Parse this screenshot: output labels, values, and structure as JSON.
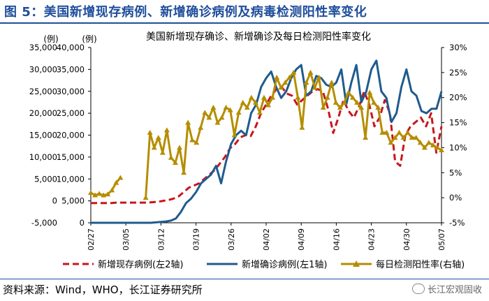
{
  "figure": {
    "title": "图 5：美国新增现存病例、新增确诊病例及病毒检测阳性率变化",
    "source": "资料来源：Wind，WHO，长江证券研究所",
    "watermark": "长江宏观固收",
    "watermark_icon": "wechat-icon"
  },
  "colors": {
    "title": "#1f4e9c",
    "existing": "#c8161d",
    "confirmed": "#1f5b8e",
    "positive": "#b58d00"
  },
  "chart_data": {
    "type": "line",
    "title": "美国新增现存确诊、新增确诊及每日检测阳性率变化",
    "axes": {
      "left2": {
        "unit_label": "(例)",
        "range": [
          -5000,
          35000
        ],
        "ticks": [
          "-5,000",
          "0",
          "5,000",
          "10,000",
          "15,000",
          "20,000",
          "25,000",
          "30,000",
          "35,000"
        ]
      },
      "left1": {
        "unit_label": "(例)",
        "range": [
          0,
          40000
        ],
        "ticks": [
          "0",
          "5,000",
          "10,000",
          "15,000",
          "20,000",
          "25,000",
          "30,000",
          "35,000",
          "40,000"
        ]
      },
      "right": {
        "range": [
          -5,
          30
        ],
        "ticks": [
          "-5%",
          "0%",
          "5%",
          "10%",
          "15%",
          "20%",
          "25%",
          "30%"
        ]
      }
    },
    "x_start": "02/27",
    "x_tick_labels": [
      "02/27",
      "03/05",
      "03/12",
      "03/19",
      "03/26",
      "04/02",
      "04/09",
      "04/16",
      "04/23",
      "04/30",
      "05/07"
    ],
    "series": [
      {
        "name": "新增现存病例(左2轴)",
        "axis": "left2",
        "style": "dashed",
        "color": "#c8161d",
        "start_day": 0,
        "values": [
          -500,
          -500,
          -500,
          -500,
          -500,
          -400,
          -400,
          -400,
          -400,
          -400,
          -400,
          -400,
          -300,
          -200,
          0,
          200,
          500,
          1000,
          2000,
          3000,
          3500,
          4000,
          5000,
          6000,
          7000,
          8500,
          10000,
          12000,
          13000,
          14500,
          15000,
          14800,
          17000,
          20000,
          22000,
          24000,
          25500,
          26000,
          24500,
          24000,
          22000,
          23000,
          24000,
          25000,
          25500,
          25000,
          21000,
          15500,
          19000,
          23000,
          20500,
          19000,
          21500,
          25000,
          22000,
          17000,
          19000,
          23000,
          20000,
          9000,
          8000,
          15000,
          17000,
          18000,
          19000,
          17000,
          20000,
          11000,
          17000
        ]
      },
      {
        "name": "新增确诊病例(左1轴)",
        "axis": "left1",
        "style": "solid",
        "color": "#1f5b8e",
        "start_day": 0,
        "values": [
          0,
          0,
          0,
          0,
          0,
          0,
          0,
          0,
          0,
          0,
          0,
          0,
          0,
          100,
          200,
          300,
          500,
          1000,
          2500,
          4500,
          5500,
          7000,
          9000,
          10000,
          11000,
          13000,
          9000,
          14000,
          18000,
          20000,
          21000,
          20000,
          25000,
          27000,
          31000,
          33000,
          34500,
          31000,
          28500,
          30000,
          33000,
          35000,
          36000,
          29000,
          30000,
          33500,
          33000,
          31500,
          31000,
          32000,
          35000,
          27000,
          32000,
          36000,
          27500,
          30000,
          35000,
          37000,
          30000,
          28500,
          23000,
          25000,
          31000,
          35000,
          30000,
          29000,
          25500,
          25000,
          26000,
          26000,
          30000
        ]
      },
      {
        "name": "每日检测阳性率(右轴)",
        "axis": "right",
        "style": "solid-markers",
        "color": "#b58d00",
        "start_day": 0,
        "values": [
          1,
          0.5,
          0.8,
          0.5,
          0.7,
          1.5,
          3,
          4,
          null,
          null,
          null,
          null,
          null,
          0,
          13,
          10,
          12,
          9,
          13.5,
          8,
          7,
          10,
          5,
          15,
          11.5,
          11,
          14,
          17,
          16,
          18,
          15,
          16,
          18,
          17.5,
          12.5,
          17,
          19,
          18,
          20,
          19,
          17,
          20,
          18.5,
          20,
          24,
          22,
          23,
          24,
          25,
          20,
          14,
          23,
          25,
          22,
          24,
          18,
          20,
          23,
          19,
          18,
          19,
          21,
          20,
          19,
          18,
          12,
          21,
          19,
          18,
          13,
          13,
          11,
          12,
          13,
          12,
          13,
          12,
          12,
          11,
          10,
          11,
          10.5,
          10,
          9.5
        ]
      }
    ]
  },
  "legend": [
    {
      "label": "新增现存病例(左2轴)"
    },
    {
      "label": "新增确诊病例(左1轴)"
    },
    {
      "label": "每日检测阳性率(右轴)"
    }
  ]
}
